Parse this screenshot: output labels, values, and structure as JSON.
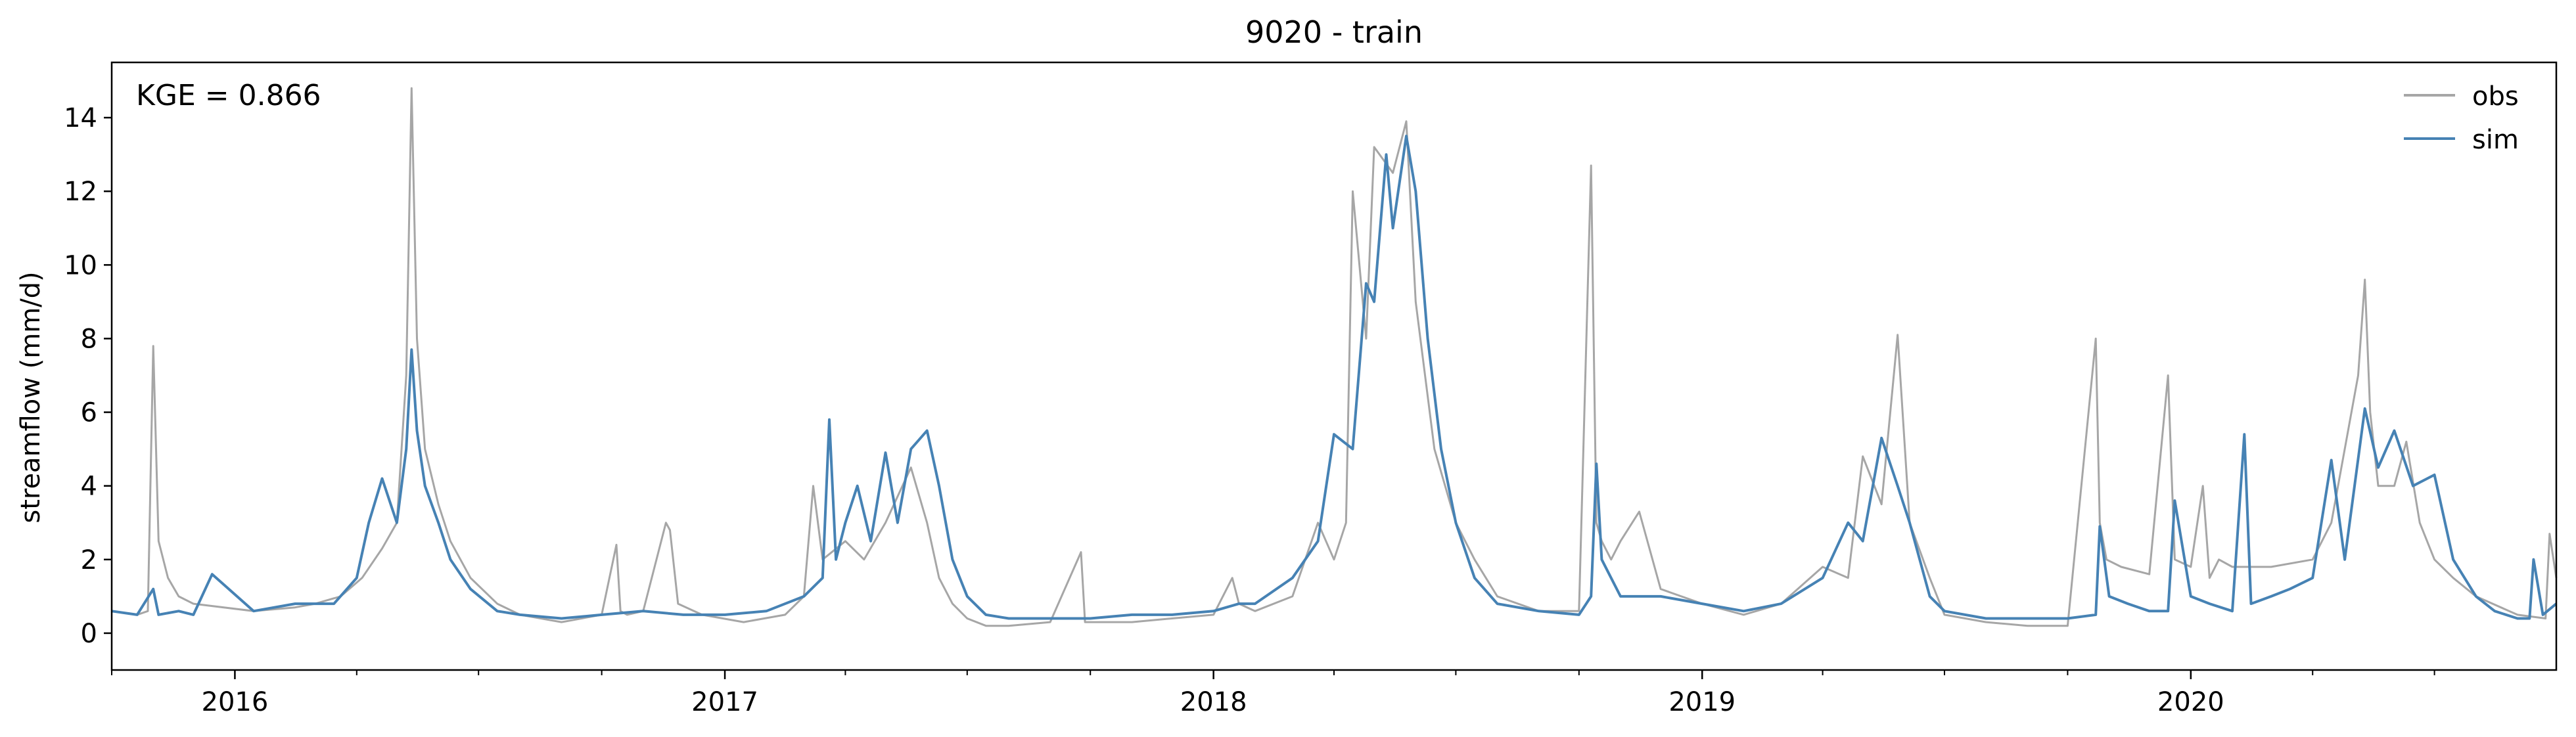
{
  "chart_data": {
    "type": "line",
    "title": "9020 - train",
    "ylabel": "streamflow (mm/d)",
    "xlabel": "",
    "annotation": "KGE = 0.866",
    "x_range": [
      "2015-10-01",
      "2020-09-30"
    ],
    "ylim": [
      -1,
      15.5
    ],
    "y_ticks": [
      "0",
      "2",
      "4",
      "6",
      "8",
      "10",
      "12",
      "14"
    ],
    "x_ticks": [
      {
        "label": "2016",
        "date": "2016-01-01"
      },
      {
        "label": "2017",
        "date": "2017-01-01"
      },
      {
        "label": "2018",
        "date": "2018-01-01"
      },
      {
        "label": "2019",
        "date": "2019-01-01"
      },
      {
        "label": "2020",
        "date": "2020-01-01"
      }
    ],
    "grid": false,
    "legend": {
      "placement": "top-right",
      "entries": [
        "obs",
        "sim"
      ]
    },
    "series": [
      {
        "name": "obs",
        "color": "#a6a6a6",
        "x": [
          "2015-10-01",
          "2015-10-20",
          "2015-10-28",
          "2015-11-01",
          "2015-11-05",
          "2015-11-12",
          "2015-11-20",
          "2015-12-01",
          "2016-01-15",
          "2016-02-15",
          "2016-03-01",
          "2016-03-20",
          "2016-04-05",
          "2016-04-20",
          "2016-05-01",
          "2016-05-08",
          "2016-05-12",
          "2016-05-16",
          "2016-05-22",
          "2016-06-01",
          "2016-06-10",
          "2016-06-25",
          "2016-07-15",
          "2016-08-01",
          "2016-09-01",
          "2016-10-01",
          "2016-10-12",
          "2016-10-15",
          "2016-10-20",
          "2016-11-01",
          "2016-11-18",
          "2016-11-21",
          "2016-11-27",
          "2016-12-15",
          "2017-01-15",
          "2017-02-15",
          "2017-03-01",
          "2017-03-08",
          "2017-03-15",
          "2017-04-01",
          "2017-04-15",
          "2017-05-01",
          "2017-05-20",
          "2017-06-01",
          "2017-06-10",
          "2017-06-20",
          "2017-07-01",
          "2017-07-15",
          "2017-08-01",
          "2017-09-01",
          "2017-09-24",
          "2017-09-27",
          "2017-10-01",
          "2017-11-01",
          "2017-12-01",
          "2018-01-01",
          "2018-01-15",
          "2018-01-20",
          "2018-02-01",
          "2018-03-01",
          "2018-03-20",
          "2018-04-01",
          "2018-04-10",
          "2018-04-15",
          "2018-04-25",
          "2018-05-01",
          "2018-05-15",
          "2018-05-25",
          "2018-06-01",
          "2018-06-15",
          "2018-07-01",
          "2018-07-15",
          "2018-08-01",
          "2018-09-01",
          "2018-10-01",
          "2018-10-10",
          "2018-10-14",
          "2018-10-18",
          "2018-10-25",
          "2018-11-01",
          "2018-11-15",
          "2018-12-01",
          "2019-01-01",
          "2019-02-01",
          "2019-03-01",
          "2019-04-01",
          "2019-04-20",
          "2019-05-01",
          "2019-05-15",
          "2019-05-27",
          "2019-06-05",
          "2019-06-20",
          "2019-07-01",
          "2019-08-01",
          "2019-09-01",
          "2019-10-01",
          "2019-10-22",
          "2019-10-25",
          "2019-10-30",
          "2019-11-10",
          "2019-12-01",
          "2019-12-15",
          "2019-12-20",
          "2020-01-01",
          "2020-01-10",
          "2020-01-15",
          "2020-01-22",
          "2020-02-01",
          "2020-03-01",
          "2020-04-01",
          "2020-04-15",
          "2020-04-25",
          "2020-05-05",
          "2020-05-10",
          "2020-05-14",
          "2020-05-20",
          "2020-06-01",
          "2020-06-10",
          "2020-06-20",
          "2020-07-01",
          "2020-07-15",
          "2020-08-01",
          "2020-09-01",
          "2020-09-22",
          "2020-09-25",
          "2020-09-30"
        ],
        "y": [
          0.6,
          0.5,
          0.6,
          7.8,
          2.5,
          1.5,
          1.0,
          0.8,
          0.6,
          0.7,
          0.8,
          1.0,
          1.5,
          2.3,
          3.0,
          7.0,
          14.8,
          8.0,
          5.0,
          3.5,
          2.5,
          1.5,
          0.8,
          0.5,
          0.3,
          0.5,
          2.4,
          0.6,
          0.5,
          0.6,
          3.0,
          2.8,
          0.8,
          0.5,
          0.3,
          0.5,
          1.0,
          4.0,
          2.0,
          2.5,
          2.0,
          3.0,
          4.5,
          3.0,
          1.5,
          0.8,
          0.4,
          0.2,
          0.2,
          0.3,
          2.2,
          0.3,
          0.3,
          0.3,
          0.4,
          0.5,
          1.5,
          0.8,
          0.6,
          1.0,
          3.0,
          2.0,
          3.0,
          12.0,
          8.0,
          13.2,
          12.5,
          13.9,
          9.0,
          5.0,
          3.0,
          2.0,
          1.0,
          0.6,
          0.6,
          12.7,
          3.0,
          2.5,
          2.0,
          2.5,
          3.3,
          1.2,
          0.8,
          0.5,
          0.8,
          1.8,
          1.5,
          4.8,
          3.5,
          8.1,
          3.0,
          1.5,
          0.5,
          0.3,
          0.2,
          0.2,
          8.0,
          3.0,
          2.0,
          1.8,
          1.6,
          7.0,
          2.0,
          1.8,
          4.0,
          1.5,
          2.0,
          1.8,
          1.8,
          2.0,
          3.0,
          5.0,
          7.0,
          9.6,
          6.0,
          4.0,
          4.0,
          5.2,
          3.0,
          2.0,
          1.5,
          1.0,
          0.5,
          0.4,
          2.7,
          1.5
        ]
      },
      {
        "name": "sim",
        "color": "#4682b4",
        "x": [
          "2015-10-01",
          "2015-10-20",
          "2015-11-01",
          "2015-11-05",
          "2015-11-20",
          "2015-12-01",
          "2015-12-15",
          "2016-01-15",
          "2016-02-15",
          "2016-03-01",
          "2016-03-15",
          "2016-04-01",
          "2016-04-10",
          "2016-04-20",
          "2016-05-01",
          "2016-05-08",
          "2016-05-12",
          "2016-05-16",
          "2016-05-22",
          "2016-06-01",
          "2016-06-10",
          "2016-06-25",
          "2016-07-15",
          "2016-08-01",
          "2016-09-01",
          "2016-10-01",
          "2016-11-01",
          "2016-12-01",
          "2017-01-01",
          "2017-02-01",
          "2017-03-01",
          "2017-03-15",
          "2017-03-20",
          "2017-03-25",
          "2017-04-01",
          "2017-04-10",
          "2017-04-20",
          "2017-05-01",
          "2017-05-10",
          "2017-05-20",
          "2017-06-01",
          "2017-06-10",
          "2017-06-20",
          "2017-07-01",
          "2017-07-15",
          "2017-08-01",
          "2017-09-01",
          "2017-10-01",
          "2017-11-01",
          "2017-12-01",
          "2018-01-01",
          "2018-01-20",
          "2018-02-01",
          "2018-03-01",
          "2018-03-20",
          "2018-04-01",
          "2018-04-15",
          "2018-04-25",
          "2018-05-01",
          "2018-05-10",
          "2018-05-15",
          "2018-05-25",
          "2018-06-01",
          "2018-06-10",
          "2018-06-20",
          "2018-07-01",
          "2018-07-15",
          "2018-08-01",
          "2018-09-01",
          "2018-10-01",
          "2018-10-10",
          "2018-10-14",
          "2018-10-18",
          "2018-11-01",
          "2018-12-01",
          "2019-01-01",
          "2019-02-01",
          "2019-03-01",
          "2019-04-01",
          "2019-04-20",
          "2019-05-01",
          "2019-05-15",
          "2019-05-27",
          "2019-06-05",
          "2019-06-20",
          "2019-07-01",
          "2019-08-01",
          "2019-09-01",
          "2019-10-01",
          "2019-10-22",
          "2019-10-25",
          "2019-11-01",
          "2019-11-15",
          "2019-12-01",
          "2019-12-15",
          "2019-12-20",
          "2020-01-01",
          "2020-01-15",
          "2020-02-01",
          "2020-02-10",
          "2020-02-15",
          "2020-03-01",
          "2020-03-15",
          "2020-04-01",
          "2020-04-15",
          "2020-04-25",
          "2020-05-10",
          "2020-05-20",
          "2020-06-01",
          "2020-06-15",
          "2020-07-01",
          "2020-07-15",
          "2020-08-01",
          "2020-08-15",
          "2020-09-01",
          "2020-09-10",
          "2020-09-13",
          "2020-09-20",
          "2020-09-30"
        ],
        "y": [
          0.6,
          0.5,
          1.2,
          0.5,
          0.6,
          0.5,
          1.6,
          0.6,
          0.8,
          0.8,
          0.8,
          1.5,
          3.0,
          4.2,
          3.0,
          5.0,
          7.7,
          5.5,
          4.0,
          3.0,
          2.0,
          1.2,
          0.6,
          0.5,
          0.4,
          0.5,
          0.6,
          0.5,
          0.5,
          0.6,
          1.0,
          1.5,
          5.8,
          2.0,
          3.0,
          4.0,
          2.5,
          4.9,
          3.0,
          5.0,
          5.5,
          4.0,
          2.0,
          1.0,
          0.5,
          0.4,
          0.4,
          0.4,
          0.5,
          0.5,
          0.6,
          0.8,
          0.8,
          1.5,
          2.5,
          5.4,
          5.0,
          9.5,
          9.0,
          13.0,
          11.0,
          13.5,
          12.0,
          8.0,
          5.0,
          3.0,
          1.5,
          0.8,
          0.6,
          0.5,
          1.0,
          4.6,
          2.0,
          1.0,
          1.0,
          0.8,
          0.6,
          0.8,
          1.5,
          3.0,
          2.5,
          5.3,
          4.0,
          3.0,
          1.0,
          0.6,
          0.4,
          0.4,
          0.4,
          0.5,
          2.9,
          1.0,
          0.8,
          0.6,
          0.6,
          3.6,
          1.0,
          0.8,
          0.6,
          5.4,
          0.8,
          1.0,
          1.2,
          1.5,
          4.7,
          2.0,
          6.1,
          4.5,
          5.5,
          4.0,
          4.3,
          2.0,
          1.0,
          0.6,
          0.4,
          0.4,
          2.0,
          0.5,
          0.8
        ]
      }
    ]
  }
}
